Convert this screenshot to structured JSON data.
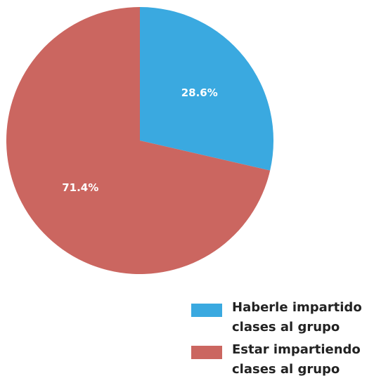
{
  "chart_data": {
    "type": "pie",
    "categories": [
      "Haberle impartido clases al grupo",
      "Estar impartiendo clases al grupo"
    ],
    "values": [
      28.6,
      71.4
    ],
    "value_labels": [
      "28.6%",
      "71.4%"
    ],
    "colors": [
      "#3aa9e0",
      "#cb6660"
    ],
    "legend": "bottom-right"
  }
}
